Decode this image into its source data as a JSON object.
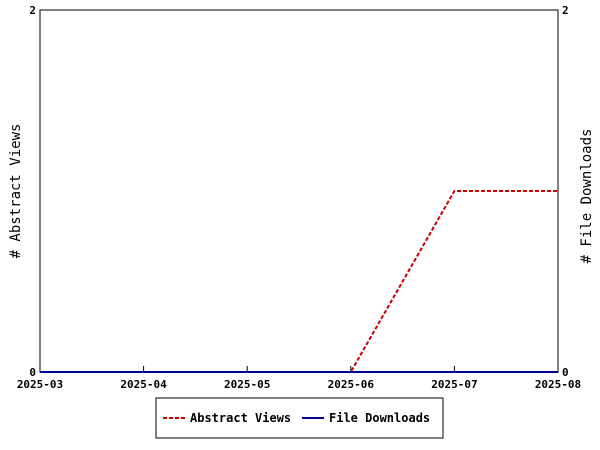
{
  "chart_data": {
    "type": "line",
    "title": "",
    "x": [
      "2025-03",
      "2025-04",
      "2025-05",
      "2025-06",
      "2025-07",
      "2025-08"
    ],
    "xlim": [
      "2025-03",
      "2025-08"
    ],
    "ylabel_left": "# Abstract Views",
    "ylabel_right": "# File Downloads",
    "ylim_left": [
      0,
      2
    ],
    "ylim_right": [
      0,
      2
    ],
    "yticks_left": [
      "0",
      "2"
    ],
    "yticks_right": [
      "0",
      "2"
    ],
    "grid": false,
    "legend_position": "bottom-center",
    "series": [
      {
        "name": "Abstract Views",
        "axis": "left",
        "color": "#cc0000",
        "style": "dashed",
        "values": [
          0,
          0,
          0,
          0,
          1,
          1
        ]
      },
      {
        "name": "File Downloads",
        "axis": "right",
        "color": "#000099",
        "style": "solid",
        "values": [
          0,
          0,
          0,
          0,
          0,
          0
        ]
      }
    ]
  }
}
